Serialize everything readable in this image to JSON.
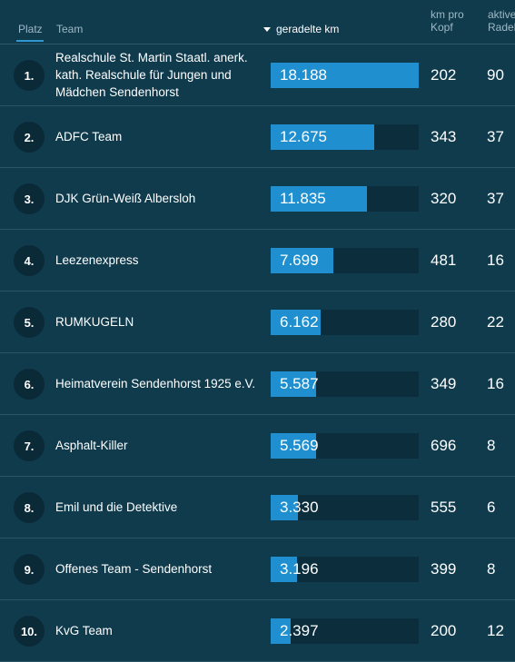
{
  "header": {
    "platz": "Platz",
    "team": "Team",
    "km": "geradelte km",
    "km_pro_kopf_line1": "km pro",
    "km_pro_kopf_line2": "Kopf",
    "aktive_line1": "aktive",
    "aktive_line2": "Radelnde"
  },
  "bar_max_km": 18188,
  "rows": [
    {
      "rank": "1.",
      "team": "Realschule St. Martin Staatl. anerk. kath. Realschule für Jungen und Mädchen Sendenhorst",
      "km_label": "18.188",
      "km": 18188,
      "km_pro_kopf": "202",
      "aktive": "90"
    },
    {
      "rank": "2.",
      "team": "ADFC Team",
      "km_label": "12.675",
      "km": 12675,
      "km_pro_kopf": "343",
      "aktive": "37"
    },
    {
      "rank": "3.",
      "team": "DJK Grün-Weiß Albersloh",
      "km_label": "11.835",
      "km": 11835,
      "km_pro_kopf": "320",
      "aktive": "37"
    },
    {
      "rank": "4.",
      "team": "Leezenexpress",
      "km_label": "7.699",
      "km": 7699,
      "km_pro_kopf": "481",
      "aktive": "16"
    },
    {
      "rank": "5.",
      "team": "RUMKUGELN",
      "km_label": "6.162",
      "km": 6162,
      "km_pro_kopf": "280",
      "aktive": "22"
    },
    {
      "rank": "6.",
      "team": "Heimatverein Sendenhorst 1925 e.V.",
      "km_label": "5.587",
      "km": 5587,
      "km_pro_kopf": "349",
      "aktive": "16"
    },
    {
      "rank": "7.",
      "team": "Asphalt-Killer",
      "km_label": "5.569",
      "km": 5569,
      "km_pro_kopf": "696",
      "aktive": "8"
    },
    {
      "rank": "8.",
      "team": "Emil und die Detektive",
      "km_label": "3.330",
      "km": 3330,
      "km_pro_kopf": "555",
      "aktive": "6"
    },
    {
      "rank": "9.",
      "team": "Offenes Team - Sendenhorst",
      "km_label": "3.196",
      "km": 3196,
      "km_pro_kopf": "399",
      "aktive": "8"
    },
    {
      "rank": "10.",
      "team": "KvG Team",
      "km_label": "2.397",
      "km": 2397,
      "km_pro_kopf": "200",
      "aktive": "12"
    }
  ],
  "colors": {
    "background": "#0f3b4d",
    "bar_fill": "#1f8fcf",
    "bar_track": "#0b2d3c",
    "rank_circle": "#0a2a38",
    "accent_underline": "#2f96d0"
  },
  "icons": {
    "sort": "sort-desc-icon"
  }
}
